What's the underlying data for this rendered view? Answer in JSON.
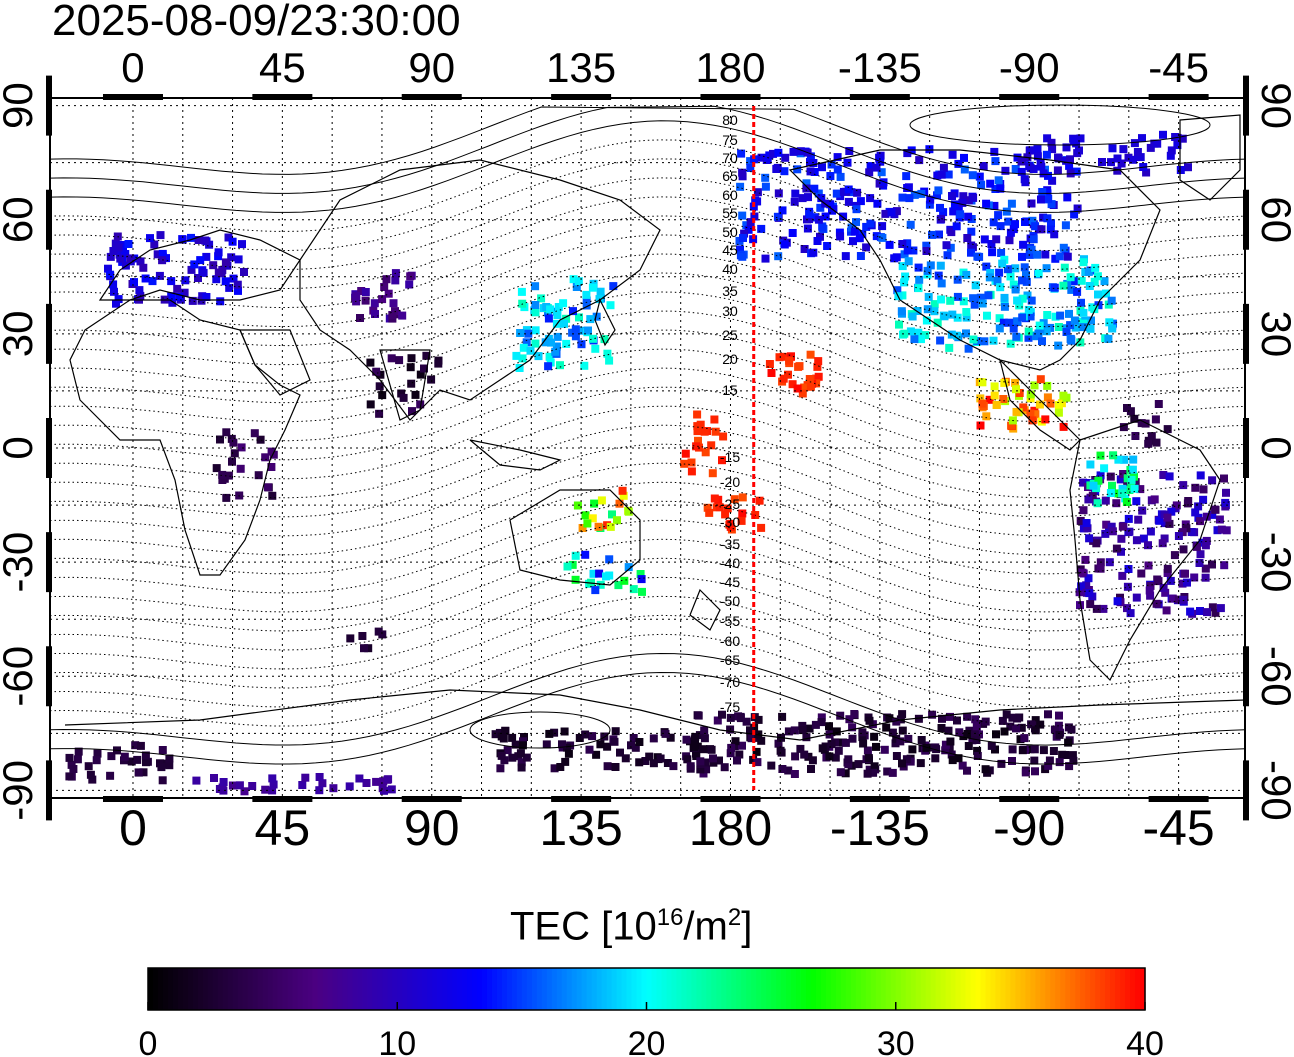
{
  "title": "2025-08-09/23:30:00",
  "lon_labels": [
    "0",
    "45",
    "90",
    "135",
    "180",
    "-135",
    "-90",
    "-45"
  ],
  "lat_labels_left": [
    "90",
    "60",
    "30",
    "0",
    "-30",
    "-60",
    "-90"
  ],
  "lat_labels_right": [
    "90",
    "60",
    "30",
    "0",
    "-30",
    "-60",
    "-90"
  ],
  "mlat_labels_north": [
    "80",
    "75",
    "70",
    "65",
    "60",
    "55",
    "50",
    "45",
    "40",
    "35",
    "30",
    "25",
    "20",
    "15"
  ],
  "mlat_labels_south": [
    "-15",
    "-20",
    "-25",
    "-30",
    "-35",
    "-40",
    "-45",
    "-50",
    "-55",
    "-60",
    "-65",
    "-70",
    "-75"
  ],
  "colorbar": {
    "title_main": "TEC  [10",
    "title_sup": "16",
    "title_mid": "/m",
    "title_sup2": "2",
    "title_end": "]",
    "ticks": [
      "0",
      "10",
      "20",
      "30",
      "40"
    ],
    "range": [
      0,
      40
    ],
    "colors": [
      "#000000",
      "#4b0082",
      "#0000ff",
      "#00ffff",
      "#00ff00",
      "#ffff00",
      "#ff0000"
    ]
  },
  "map": {
    "lon_range": [
      -25,
      335
    ],
    "lat_range": [
      -92,
      92
    ],
    "terminator_lon": 187,
    "terminator_color": "#ff0000"
  }
}
